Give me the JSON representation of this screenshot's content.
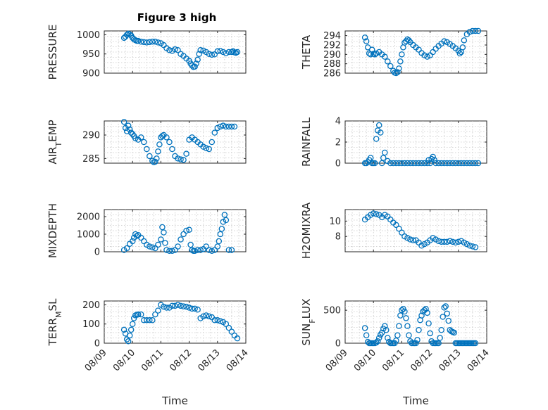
{
  "figure": {
    "title": "Figure 3 high",
    "x_ticks": [
      "08/09",
      "08/10",
      "08/11",
      "08/12",
      "08/13",
      "08/14"
    ],
    "xlabel": "Time",
    "marker_color": "#0072BD"
  },
  "chart_data": [
    {
      "type": "scatter",
      "ylabel": "PRESSURE",
      "title": "Figure 3 high",
      "ylim": [
        900,
        1010
      ],
      "yticks": [
        900,
        950,
        1000
      ],
      "x": [
        9.7,
        9.75,
        9.8,
        9.85,
        9.9,
        9.95,
        10.0,
        10.05,
        10.1,
        10.15,
        10.2,
        10.3,
        10.4,
        10.5,
        10.6,
        10.7,
        10.8,
        10.9,
        11.0,
        11.1,
        11.2,
        11.3,
        11.4,
        11.5,
        11.6,
        11.7,
        11.8,
        11.9,
        12.0,
        12.05,
        12.1,
        12.15,
        12.2,
        12.25,
        12.3,
        12.35,
        12.4,
        12.5,
        12.6,
        12.7,
        12.8,
        12.9,
        13.0,
        13.1,
        13.2,
        13.3,
        13.4,
        13.5,
        13.55,
        13.6,
        13.65,
        13.7
      ],
      "y": [
        992,
        995,
        1000,
        1003,
        1001,
        998,
        992,
        988,
        986,
        984,
        984,
        982,
        981,
        980,
        981,
        982,
        982,
        980,
        978,
        973,
        965,
        960,
        958,
        962,
        960,
        950,
        945,
        938,
        932,
        925,
        920,
        916,
        917,
        925,
        935,
        950,
        960,
        959,
        955,
        950,
        948,
        949,
        957,
        958,
        955,
        952,
        955,
        955,
        957,
        954,
        953,
        955
      ]
    },
    {
      "type": "scatter",
      "ylabel": "THETA",
      "ylim": [
        286,
        295
      ],
      "yticks": [
        286,
        288,
        290,
        292,
        294
      ],
      "x": [
        9.7,
        9.75,
        9.8,
        9.85,
        9.9,
        9.95,
        10.0,
        10.05,
        10.1,
        10.2,
        10.3,
        10.4,
        10.5,
        10.6,
        10.7,
        10.75,
        10.8,
        10.85,
        10.9,
        10.95,
        11.0,
        11.05,
        11.1,
        11.15,
        11.2,
        11.25,
        11.3,
        11.4,
        11.5,
        11.6,
        11.7,
        11.8,
        11.9,
        12.0,
        12.1,
        12.2,
        12.3,
        12.4,
        12.5,
        12.6,
        12.7,
        12.8,
        12.9,
        13.0,
        13.05,
        13.1,
        13.15,
        13.2,
        13.3,
        13.4,
        13.5,
        13.6,
        13.7
      ],
      "y": [
        293.6,
        292.8,
        291.5,
        290.2,
        290.0,
        291.0,
        290.1,
        290.0,
        290.2,
        290.5,
        290.0,
        289.5,
        288.5,
        287.5,
        286.5,
        286.1,
        286.0,
        286.2,
        287.0,
        288.5,
        290.0,
        291.5,
        292.5,
        292.8,
        293.2,
        293.0,
        292.6,
        292.0,
        291.5,
        291.0,
        290.3,
        289.8,
        289.5,
        289.8,
        290.5,
        291.2,
        291.8,
        292.3,
        292.8,
        292.6,
        292.2,
        291.8,
        291.3,
        290.8,
        290.2,
        290.5,
        291.5,
        293.0,
        294.3,
        294.8,
        295.0,
        295.0,
        295.0
      ]
    },
    {
      "type": "scatter",
      "ylabel": "AIR_TEMP",
      "ylim": [
        284,
        293
      ],
      "yticks": [
        285,
        290
      ],
      "x": [
        9.7,
        9.75,
        9.8,
        9.85,
        9.9,
        9.95,
        10.0,
        10.05,
        10.1,
        10.2,
        10.3,
        10.4,
        10.5,
        10.6,
        10.7,
        10.75,
        10.8,
        10.85,
        10.9,
        10.95,
        11.0,
        11.05,
        11.1,
        11.2,
        11.3,
        11.4,
        11.5,
        11.6,
        11.7,
        11.8,
        11.9,
        12.0,
        12.1,
        12.2,
        12.3,
        12.4,
        12.5,
        12.6,
        12.7,
        12.8,
        12.9,
        13.0,
        13.1,
        13.2,
        13.3,
        13.4,
        13.5,
        13.6
      ],
      "y": [
        292.8,
        291.5,
        290.8,
        292.0,
        291.2,
        290.5,
        290.2,
        289.8,
        289.3,
        289.0,
        289.5,
        288.5,
        287.0,
        285.5,
        284.5,
        284.2,
        284.3,
        285.0,
        286.5,
        288.0,
        289.5,
        289.8,
        290.0,
        289.5,
        288.5,
        287.0,
        285.5,
        285.0,
        284.8,
        284.7,
        286.0,
        289.0,
        289.5,
        289.0,
        288.5,
        288.0,
        287.5,
        287.2,
        287.0,
        288.5,
        290.5,
        291.5,
        291.8,
        292.0,
        291.8,
        291.8,
        291.8,
        291.8
      ]
    },
    {
      "type": "scatter",
      "ylabel": "RAINFALL",
      "ylim": [
        0,
        4
      ],
      "yticks": [
        0,
        2,
        4
      ],
      "x": [
        9.7,
        9.75,
        9.8,
        9.85,
        9.9,
        9.95,
        10.0,
        10.05,
        10.1,
        10.15,
        10.2,
        10.25,
        10.3,
        10.35,
        10.4,
        10.5,
        10.6,
        10.7,
        10.8,
        10.9,
        11.0,
        11.1,
        11.2,
        11.3,
        11.4,
        11.5,
        11.6,
        11.7,
        11.8,
        11.9,
        11.95,
        12.0,
        12.05,
        12.1,
        12.15,
        12.2,
        12.3,
        12.4,
        12.5,
        12.6,
        12.7,
        12.8,
        12.9,
        13.0,
        13.1,
        13.2,
        13.3,
        13.4,
        13.5,
        13.6,
        13.7
      ],
      "y": [
        0,
        0,
        0.1,
        0.3,
        0.5,
        0,
        0,
        0,
        2.3,
        3.1,
        3.6,
        2.9,
        0,
        0.5,
        1.0,
        0.2,
        0,
        0,
        0,
        0,
        0,
        0,
        0,
        0,
        0,
        0,
        0,
        0,
        0,
        0,
        0.3,
        0,
        0.4,
        0.6,
        0.3,
        0,
        0,
        0,
        0,
        0,
        0,
        0,
        0,
        0,
        0,
        0,
        0,
        0,
        0,
        0,
        0
      ]
    },
    {
      "type": "scatter",
      "ylabel": "MIXDEPTH",
      "ylim": [
        0,
        2400
      ],
      "yticks": [
        0,
        1000,
        2000
      ],
      "x": [
        9.7,
        9.8,
        9.9,
        10.0,
        10.05,
        10.1,
        10.15,
        10.2,
        10.3,
        10.4,
        10.5,
        10.6,
        10.7,
        10.8,
        10.9,
        11.0,
        11.05,
        11.1,
        11.15,
        11.2,
        11.3,
        11.4,
        11.5,
        11.6,
        11.7,
        11.8,
        11.9,
        12.0,
        12.05,
        12.1,
        12.15,
        12.2,
        12.3,
        12.4,
        12.5,
        12.6,
        12.7,
        12.8,
        12.9,
        13.0,
        13.05,
        13.1,
        13.15,
        13.2,
        13.25,
        13.3,
        13.4,
        13.5
      ],
      "y": [
        100,
        200,
        450,
        600,
        800,
        1000,
        900,
        950,
        800,
        600,
        400,
        300,
        250,
        200,
        400,
        700,
        1400,
        1100,
        500,
        100,
        50,
        50,
        100,
        300,
        700,
        1000,
        1200,
        1250,
        400,
        100,
        50,
        50,
        100,
        100,
        150,
        300,
        100,
        50,
        100,
        300,
        600,
        1000,
        1300,
        1700,
        2100,
        1800,
        100,
        100
      ]
    },
    {
      "type": "scatter",
      "ylabel": "H2OMIXRA",
      "ylim": [
        6,
        11.5
      ],
      "yticks": [
        8,
        10
      ],
      "x": [
        9.7,
        9.8,
        9.9,
        10.0,
        10.1,
        10.2,
        10.3,
        10.4,
        10.5,
        10.6,
        10.7,
        10.8,
        10.9,
        11.0,
        11.1,
        11.2,
        11.3,
        11.4,
        11.5,
        11.6,
        11.7,
        11.8,
        11.9,
        12.0,
        12.1,
        12.2,
        12.3,
        12.4,
        12.5,
        12.6,
        12.7,
        12.8,
        12.9,
        13.0,
        13.1,
        13.2,
        13.3,
        13.4,
        13.5,
        13.6
      ],
      "y": [
        10.2,
        10.5,
        10.8,
        11.0,
        10.9,
        10.8,
        10.5,
        10.8,
        10.6,
        10.2,
        9.8,
        9.5,
        9.0,
        8.5,
        8.0,
        7.8,
        7.6,
        7.5,
        7.5,
        7.2,
        6.8,
        7.0,
        7.2,
        7.5,
        7.8,
        7.6,
        7.4,
        7.3,
        7.3,
        7.3,
        7.4,
        7.3,
        7.2,
        7.3,
        7.4,
        7.2,
        7.0,
        6.8,
        6.7,
        6.6
      ]
    },
    {
      "type": "scatter",
      "ylabel": "TERR_MSL",
      "ylim": [
        0,
        220
      ],
      "yticks": [
        0,
        100,
        200
      ],
      "x": [
        9.7,
        9.75,
        9.8,
        9.85,
        9.9,
        9.95,
        10.0,
        10.05,
        10.1,
        10.15,
        10.2,
        10.3,
        10.4,
        10.5,
        10.6,
        10.7,
        10.8,
        10.9,
        11.0,
        11.1,
        11.2,
        11.3,
        11.4,
        11.5,
        11.6,
        11.7,
        11.8,
        11.9,
        12.0,
        12.1,
        12.2,
        12.3,
        12.4,
        12.5,
        12.6,
        12.7,
        12.8,
        12.9,
        13.0,
        13.1,
        13.2,
        13.3,
        13.4,
        13.5,
        13.6,
        13.7
      ],
      "y": [
        70,
        50,
        20,
        10,
        40,
        70,
        100,
        130,
        145,
        148,
        150,
        150,
        120,
        120,
        120,
        120,
        150,
        170,
        200,
        190,
        185,
        185,
        195,
        195,
        200,
        195,
        192,
        190,
        185,
        180,
        180,
        175,
        130,
        140,
        145,
        140,
        135,
        120,
        120,
        115,
        110,
        100,
        80,
        60,
        40,
        25
      ]
    },
    {
      "type": "scatter",
      "ylabel": "SUN_FLUX",
      "ylim": [
        0,
        640
      ],
      "yticks": [
        0,
        500
      ],
      "x": [
        9.7,
        9.75,
        9.8,
        9.85,
        9.9,
        9.95,
        10.0,
        10.05,
        10.1,
        10.15,
        10.2,
        10.25,
        10.3,
        10.35,
        10.4,
        10.45,
        10.5,
        10.55,
        10.6,
        10.65,
        10.7,
        10.75,
        10.8,
        10.85,
        10.9,
        10.95,
        11.0,
        11.05,
        11.1,
        11.15,
        11.2,
        11.25,
        11.3,
        11.35,
        11.4,
        11.45,
        11.5,
        11.55,
        11.6,
        11.65,
        11.7,
        11.75,
        11.8,
        11.85,
        11.9,
        11.95,
        12.0,
        12.05,
        12.1,
        12.15,
        12.2,
        12.25,
        12.3,
        12.35,
        12.4,
        12.45,
        12.5,
        12.55,
        12.6,
        12.65,
        12.7,
        12.75,
        12.8,
        12.85,
        12.9,
        12.95,
        13.0,
        13.05,
        13.1,
        13.15,
        13.2,
        13.25,
        13.3,
        13.35,
        13.4,
        13.45,
        13.5,
        13.55,
        13.6
      ],
      "y": [
        230,
        120,
        20,
        0,
        0,
        0,
        0,
        0,
        10,
        30,
        80,
        130,
        160,
        220,
        260,
        200,
        80,
        20,
        0,
        0,
        0,
        0,
        40,
        120,
        260,
        420,
        500,
        520,
        480,
        380,
        260,
        120,
        30,
        0,
        0,
        0,
        0,
        50,
        200,
        350,
        420,
        480,
        500,
        520,
        460,
        300,
        150,
        30,
        0,
        0,
        0,
        0,
        0,
        80,
        200,
        400,
        540,
        560,
        450,
        340,
        200,
        180,
        170,
        160,
        0,
        0,
        0,
        0,
        0,
        0,
        0,
        0,
        0,
        0,
        0,
        0,
        0,
        0,
        0
      ]
    }
  ]
}
